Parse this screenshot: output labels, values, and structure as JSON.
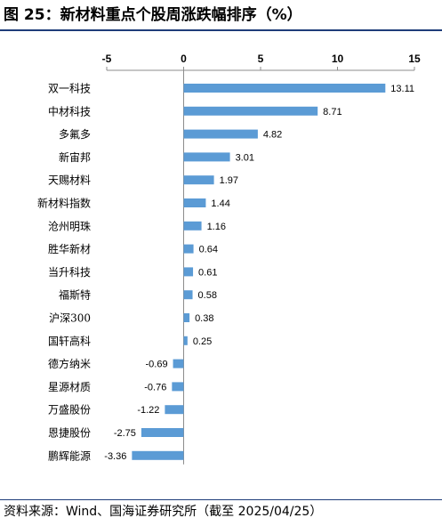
{
  "figure": {
    "title": "图 25：新材料重点个股周涨跌幅排序（%）",
    "source": "资料来源：Wind、国海证券研究所（截至 2025/04/25）"
  },
  "chart_data": {
    "type": "bar",
    "orientation": "horizontal",
    "title": "",
    "xlabel": "",
    "ylabel": "",
    "xlim": [
      -5,
      15
    ],
    "ticks": [
      -5,
      0,
      5,
      10,
      15
    ],
    "tick_labels": [
      "-5",
      "0",
      "5",
      "10",
      "15"
    ],
    "axis_position": "top",
    "grid": false,
    "legend": "none",
    "bar_color": "#5b9bd5",
    "categories": [
      "双一科技",
      "中材科技",
      "多氟多",
      "新宙邦",
      "天赐材料",
      "新材料指数",
      "沧州明珠",
      "胜华新材",
      "当升科技",
      "福斯特",
      "沪深300",
      "国轩高科",
      "德方纳米",
      "星源材质",
      "万盛股份",
      "恩捷股份",
      "鹏辉能源"
    ],
    "values": [
      13.11,
      8.71,
      4.82,
      3.01,
      1.97,
      1.44,
      1.16,
      0.64,
      0.61,
      0.58,
      0.38,
      0.25,
      -0.69,
      -0.76,
      -1.22,
      -2.75,
      -3.36
    ],
    "value_labels": [
      "13.11",
      "8.71",
      "4.82",
      "3.01",
      "1.97",
      "1.44",
      "1.16",
      "0.64",
      "0.61",
      "0.58",
      "0.38",
      "0.25",
      "-0.69",
      "-0.76",
      "-1.22",
      "-2.75",
      "-3.36"
    ]
  }
}
